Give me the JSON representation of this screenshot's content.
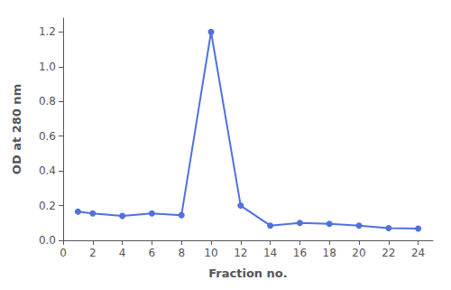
{
  "chart_data": {
    "type": "line",
    "xlabel": "Fraction no.",
    "ylabel": "OD at 280 nm",
    "x": [
      1,
      2,
      4,
      6,
      8,
      10,
      12,
      14,
      16,
      18,
      20,
      22,
      24
    ],
    "values": [
      0.165,
      0.155,
      0.14,
      0.155,
      0.145,
      1.2,
      0.2,
      0.085,
      0.1,
      0.095,
      0.085,
      0.07,
      0.068
    ],
    "xlim": [
      0,
      25
    ],
    "ylim": [
      0.0,
      1.28
    ],
    "xticks": [
      0,
      2,
      4,
      6,
      8,
      10,
      12,
      14,
      16,
      18,
      20,
      22,
      24
    ],
    "yticks": [
      {
        "value": 0.0,
        "label": "0.0"
      },
      0.2,
      0.4,
      0.6,
      0.8,
      {
        "value": 1.0,
        "label": "1.0"
      },
      1.2
    ],
    "marker": "circle",
    "grid": false
  }
}
